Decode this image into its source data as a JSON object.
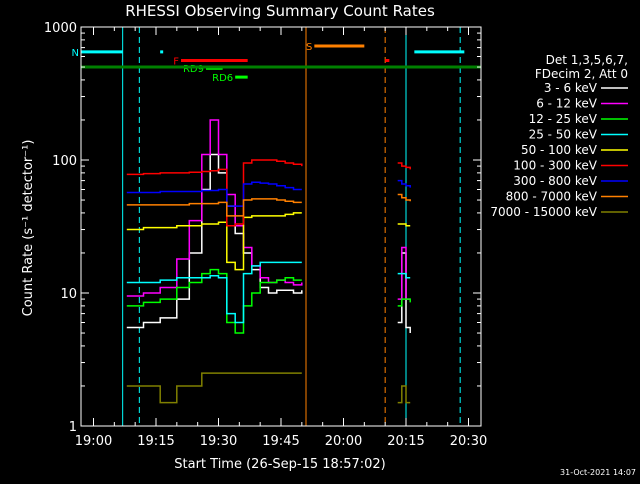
{
  "chart_data": {
    "type": "line",
    "title": "RHESSI Observing Summary Count Rates",
    "xlabel": "Start Time (26-Sep-15 18:57:02)",
    "ylabel": "Count Rate (s⁻¹ detector⁻¹)",
    "y_scale": "log",
    "ylim": [
      1,
      1000
    ],
    "xlim": [
      "18:57",
      "20:33"
    ],
    "x_ticks": [
      "19:00",
      "19:15",
      "19:30",
      "19:45",
      "20:00",
      "20:15",
      "20:30"
    ],
    "y_ticks": [
      "1",
      "10",
      "100",
      "1000"
    ],
    "grid": false,
    "legend_header": [
      "Det 1,3,5,6,7,",
      "FDecim 2, Att 0"
    ],
    "legend_position": "right",
    "timestamp": "31-Oct-2021 14:07",
    "data_gaps": [
      [
        "18:57",
        "19:08"
      ],
      [
        "19:51",
        "20:13"
      ],
      [
        "20:16",
        "20:33"
      ]
    ],
    "series": [
      {
        "name": "3 - 6 keV",
        "color": "#ffffff",
        "x": [
          "19:08",
          "19:12",
          "19:16",
          "19:20",
          "19:23",
          "19:26",
          "19:28",
          "19:30",
          "19:32",
          "19:34",
          "19:36",
          "19:38",
          "19:40",
          "19:42",
          "19:44",
          "19:46",
          "19:48",
          "19:50",
          "20:13",
          "20:14",
          "20:15",
          "20:16"
        ],
        "values": [
          5.5,
          6,
          6.5,
          9,
          20,
          60,
          110,
          80,
          45,
          28,
          20,
          15,
          11,
          10,
          10.5,
          10.5,
          10,
          10.5,
          6,
          20,
          5.5,
          5
        ]
      },
      {
        "name": "6 - 12 keV",
        "color": "#ff00ff",
        "x": [
          "19:08",
          "19:12",
          "19:16",
          "19:20",
          "19:23",
          "19:26",
          "19:28",
          "19:30",
          "19:32",
          "19:34",
          "19:36",
          "19:38",
          "19:40",
          "19:42",
          "19:44",
          "19:46",
          "19:48",
          "19:50",
          "20:13",
          "20:14",
          "20:15",
          "20:16"
        ],
        "values": [
          9.5,
          10,
          11,
          18,
          35,
          110,
          200,
          110,
          55,
          32,
          22,
          16,
          13,
          12,
          12.5,
          12,
          11.5,
          12,
          9,
          22,
          9,
          9
        ]
      },
      {
        "name": "12 - 25 keV",
        "color": "#00ff00",
        "x": [
          "19:08",
          "19:12",
          "19:16",
          "19:20",
          "19:23",
          "19:26",
          "19:28",
          "19:30",
          "19:32",
          "19:34",
          "19:36",
          "19:38",
          "19:40",
          "19:42",
          "19:44",
          "19:46",
          "19:48",
          "19:50",
          "20:13",
          "20:14",
          "20:15",
          "20:16"
        ],
        "values": [
          8,
          8.5,
          9,
          11,
          12,
          14,
          15,
          14,
          6,
          5,
          8,
          10,
          12,
          12,
          12.5,
          13,
          12.5,
          12.5,
          8,
          9,
          9,
          8.5
        ]
      },
      {
        "name": "25 - 50 keV",
        "color": "#00ffff",
        "x": [
          "19:08",
          "19:12",
          "19:16",
          "19:20",
          "19:23",
          "19:26",
          "19:28",
          "19:30",
          "19:32",
          "19:34",
          "19:36",
          "19:38",
          "19:40",
          "19:42",
          "19:44",
          "19:46",
          "19:48",
          "19:50",
          "20:13",
          "20:14",
          "20:15",
          "20:16"
        ],
        "values": [
          12,
          12,
          12.5,
          13,
          13,
          13,
          13.5,
          13,
          7,
          6,
          14,
          16,
          17,
          17,
          17,
          17,
          17,
          17,
          14,
          14,
          13,
          13
        ]
      },
      {
        "name": "50 - 100 keV",
        "color": "#ffff00",
        "x": [
          "19:08",
          "19:12",
          "19:16",
          "19:20",
          "19:23",
          "19:26",
          "19:28",
          "19:30",
          "19:32",
          "19:34",
          "19:36",
          "19:38",
          "19:40",
          "19:42",
          "19:44",
          "19:46",
          "19:48",
          "19:50",
          "20:13",
          "20:14",
          "20:15",
          "20:16"
        ],
        "values": [
          30,
          31,
          31,
          32,
          32,
          33,
          33,
          34,
          17,
          15,
          37,
          38,
          38,
          38,
          38,
          39,
          40,
          40,
          33,
          33,
          32,
          32
        ]
      },
      {
        "name": "100 - 300 keV",
        "color": "#ff0000",
        "x": [
          "19:08",
          "19:12",
          "19:16",
          "19:20",
          "19:23",
          "19:26",
          "19:28",
          "19:30",
          "19:32",
          "19:34",
          "19:36",
          "19:38",
          "19:40",
          "19:42",
          "19:44",
          "19:46",
          "19:48",
          "19:50",
          "20:13",
          "20:14",
          "20:15",
          "20:16"
        ],
        "values": [
          78,
          79,
          80,
          80,
          81,
          82,
          83,
          85,
          32,
          33,
          95,
          100,
          100,
          100,
          98,
          95,
          93,
          90,
          95,
          90,
          88,
          85
        ]
      },
      {
        "name": "300 - 800 keV",
        "color": "#0000ff",
        "x": [
          "19:08",
          "19:12",
          "19:16",
          "19:20",
          "19:23",
          "19:26",
          "19:28",
          "19:30",
          "19:32",
          "19:34",
          "19:36",
          "19:38",
          "19:40",
          "19:42",
          "19:44",
          "19:46",
          "19:48",
          "19:50",
          "20:13",
          "20:14",
          "20:15",
          "20:16"
        ],
        "values": [
          57,
          57,
          58,
          58,
          58,
          59,
          59,
          60,
          45,
          45,
          66,
          68,
          67,
          66,
          64,
          62,
          60,
          60,
          70,
          66,
          64,
          62
        ]
      },
      {
        "name": "800 - 7000 keV",
        "color": "#ff8000",
        "x": [
          "19:08",
          "19:12",
          "19:16",
          "19:20",
          "19:23",
          "19:26",
          "19:28",
          "19:30",
          "19:32",
          "19:34",
          "19:36",
          "19:38",
          "19:40",
          "19:42",
          "19:44",
          "19:46",
          "19:48",
          "19:50",
          "20:13",
          "20:14",
          "20:15",
          "20:16"
        ],
        "values": [
          46,
          46,
          46,
          46,
          47,
          47,
          47,
          48,
          38,
          38,
          50,
          51,
          51,
          51,
          50,
          49,
          48,
          48,
          55,
          52,
          50,
          49
        ]
      },
      {
        "name": "7000 - 15000 keV",
        "color": "#808000",
        "x": [
          "19:08",
          "19:12",
          "19:16",
          "19:20",
          "19:23",
          "19:26",
          "19:28",
          "19:30",
          "19:32",
          "19:34",
          "19:36",
          "19:38",
          "19:40",
          "19:42",
          "19:44",
          "19:46",
          "19:48",
          "19:50",
          "20:13",
          "20:14",
          "20:15",
          "20:16"
        ],
        "values": [
          2,
          2,
          1.5,
          2,
          2,
          2.5,
          2.5,
          2.5,
          2.5,
          2.5,
          2.5,
          2.5,
          2.5,
          2.5,
          2.5,
          2.5,
          2.5,
          2.5,
          1.5,
          2,
          1.5,
          1.5
        ]
      }
    ],
    "annotations": [
      {
        "label": "N",
        "color": "#00ffff",
        "value": 650,
        "segments": [
          [
            "18:57",
            "19:07"
          ],
          [
            "19:16",
            "19:16"
          ],
          [
            "20:17",
            "20:29"
          ]
        ]
      },
      {
        "label": "F",
        "color": "#ff0000",
        "value": 560,
        "segments": [
          [
            "19:21",
            "19:37"
          ],
          [
            "20:10",
            "20:11"
          ]
        ]
      },
      {
        "label": "S",
        "color": "#ff8000",
        "value": 720,
        "segments": [
          [
            "19:53",
            "20:05"
          ]
        ]
      },
      {
        "label": "RD9",
        "color": "#00ff00",
        "value": 490,
        "segments": [
          [
            "19:27",
            "19:31"
          ]
        ]
      },
      {
        "label": "RD6",
        "color": "#00ff00",
        "value": 420,
        "segments": [
          [
            "19:34",
            "19:37"
          ]
        ]
      },
      {
        "label": "",
        "color": "#008000",
        "value": 500,
        "segments": [
          [
            "18:57",
            "20:33"
          ]
        ]
      }
    ],
    "vertical_lines": [
      {
        "time": "18:57",
        "color": "#00ffff",
        "style": "solid"
      },
      {
        "time": "19:07",
        "color": "#00ffff",
        "style": "solid"
      },
      {
        "time": "19:11",
        "color": "#00ffff",
        "style": "dashed"
      },
      {
        "time": "19:51",
        "color": "#ff8000",
        "style": "solid"
      },
      {
        "time": "20:10",
        "color": "#ff8000",
        "style": "dashed"
      },
      {
        "time": "20:15",
        "color": "#00ffff",
        "style": "solid"
      },
      {
        "time": "20:28",
        "color": "#00ffff",
        "style": "dashed"
      }
    ]
  }
}
